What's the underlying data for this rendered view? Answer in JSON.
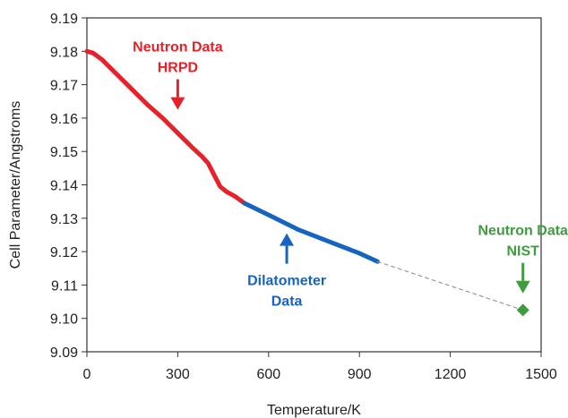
{
  "chart_data": {
    "type": "line",
    "title": "",
    "xlabel": "Temperature/K",
    "ylabel": "Cell Parameter/Angstroms",
    "xlim": [
      0,
      1500
    ],
    "ylim": [
      9.09,
      9.19
    ],
    "xticks": [
      0,
      300,
      600,
      900,
      1200,
      1500
    ],
    "xtick_labels": [
      "0",
      "300",
      "600",
      "900",
      "1200",
      "1500"
    ],
    "yticks": [
      9.09,
      9.1,
      9.11,
      9.12,
      9.13,
      9.14,
      9.15,
      9.16,
      9.17,
      9.18,
      9.19
    ],
    "ytick_labels": [
      "9.09",
      "9.10",
      "9.11",
      "9.12",
      "9.13",
      "9.14",
      "9.15",
      "9.16",
      "9.17",
      "9.18",
      "9.19"
    ],
    "grid": false,
    "legend": "none",
    "series": [
      {
        "color": "#e8202a",
        "style": "solid",
        "x": [
          0,
          20,
          50,
          100,
          150,
          200,
          250,
          300,
          350,
          380,
          400,
          420,
          440,
          460,
          490,
          520
        ],
        "y": [
          9.18,
          9.1795,
          9.1775,
          9.173,
          9.1685,
          9.164,
          9.16,
          9.1555,
          9.151,
          9.1485,
          9.1465,
          9.143,
          9.1395,
          9.138,
          9.1365,
          9.1345
        ]
      },
      {
        "color": "#1565c0",
        "style": "solid",
        "x": [
          520,
          600,
          700,
          800,
          900,
          960
        ],
        "y": [
          9.1345,
          9.131,
          9.1265,
          9.123,
          9.1195,
          9.117
        ]
      },
      {
        "color": "#999999",
        "style": "dashed",
        "x": [
          960,
          1440
        ],
        "y": [
          9.117,
          9.1025
        ]
      },
      {
        "color": "#3f9b3f",
        "style": "marker",
        "x": [
          1440
        ],
        "y": [
          9.1025
        ]
      }
    ],
    "annotations": [
      {
        "lines": [
          "Neutron Data",
          "HRPD"
        ],
        "color": "#e8202a",
        "arrow": "down",
        "x": 300,
        "y": 9.1625
      },
      {
        "lines": [
          "Dilatometer",
          "Data"
        ],
        "color": "#1565c0",
        "arrow": "up",
        "x": 660,
        "y": 9.1255
      },
      {
        "lines": [
          "Neutron Data",
          "NIST"
        ],
        "color": "#3f9b3f",
        "arrow": "down",
        "x": 1440,
        "y": 9.1075
      }
    ]
  }
}
